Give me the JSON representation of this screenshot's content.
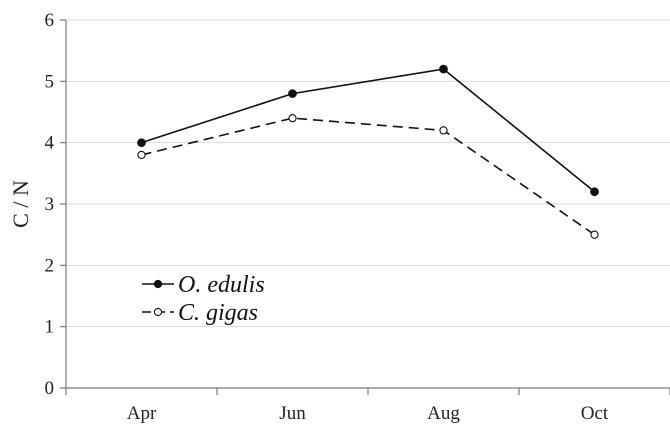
{
  "chart_data": {
    "type": "line",
    "categories": [
      "Apr",
      "Jun",
      "Aug",
      "Oct"
    ],
    "series": [
      {
        "name": "O. edulis",
        "values": [
          4.0,
          4.8,
          5.2,
          3.2
        ],
        "marker": "filled",
        "line_style": "solid",
        "color": "#111111"
      },
      {
        "name": "C. gigas",
        "values": [
          3.8,
          4.4,
          4.2,
          2.5
        ],
        "marker": "open",
        "line_style": "dashed",
        "color": "#111111"
      }
    ],
    "ylabel": "C / N",
    "ylim": [
      0,
      6
    ],
    "yticks": [
      "0",
      "1",
      "2",
      "3",
      "4",
      "5",
      "6"
    ],
    "grid": true,
    "legend_position": "bottom-left"
  }
}
